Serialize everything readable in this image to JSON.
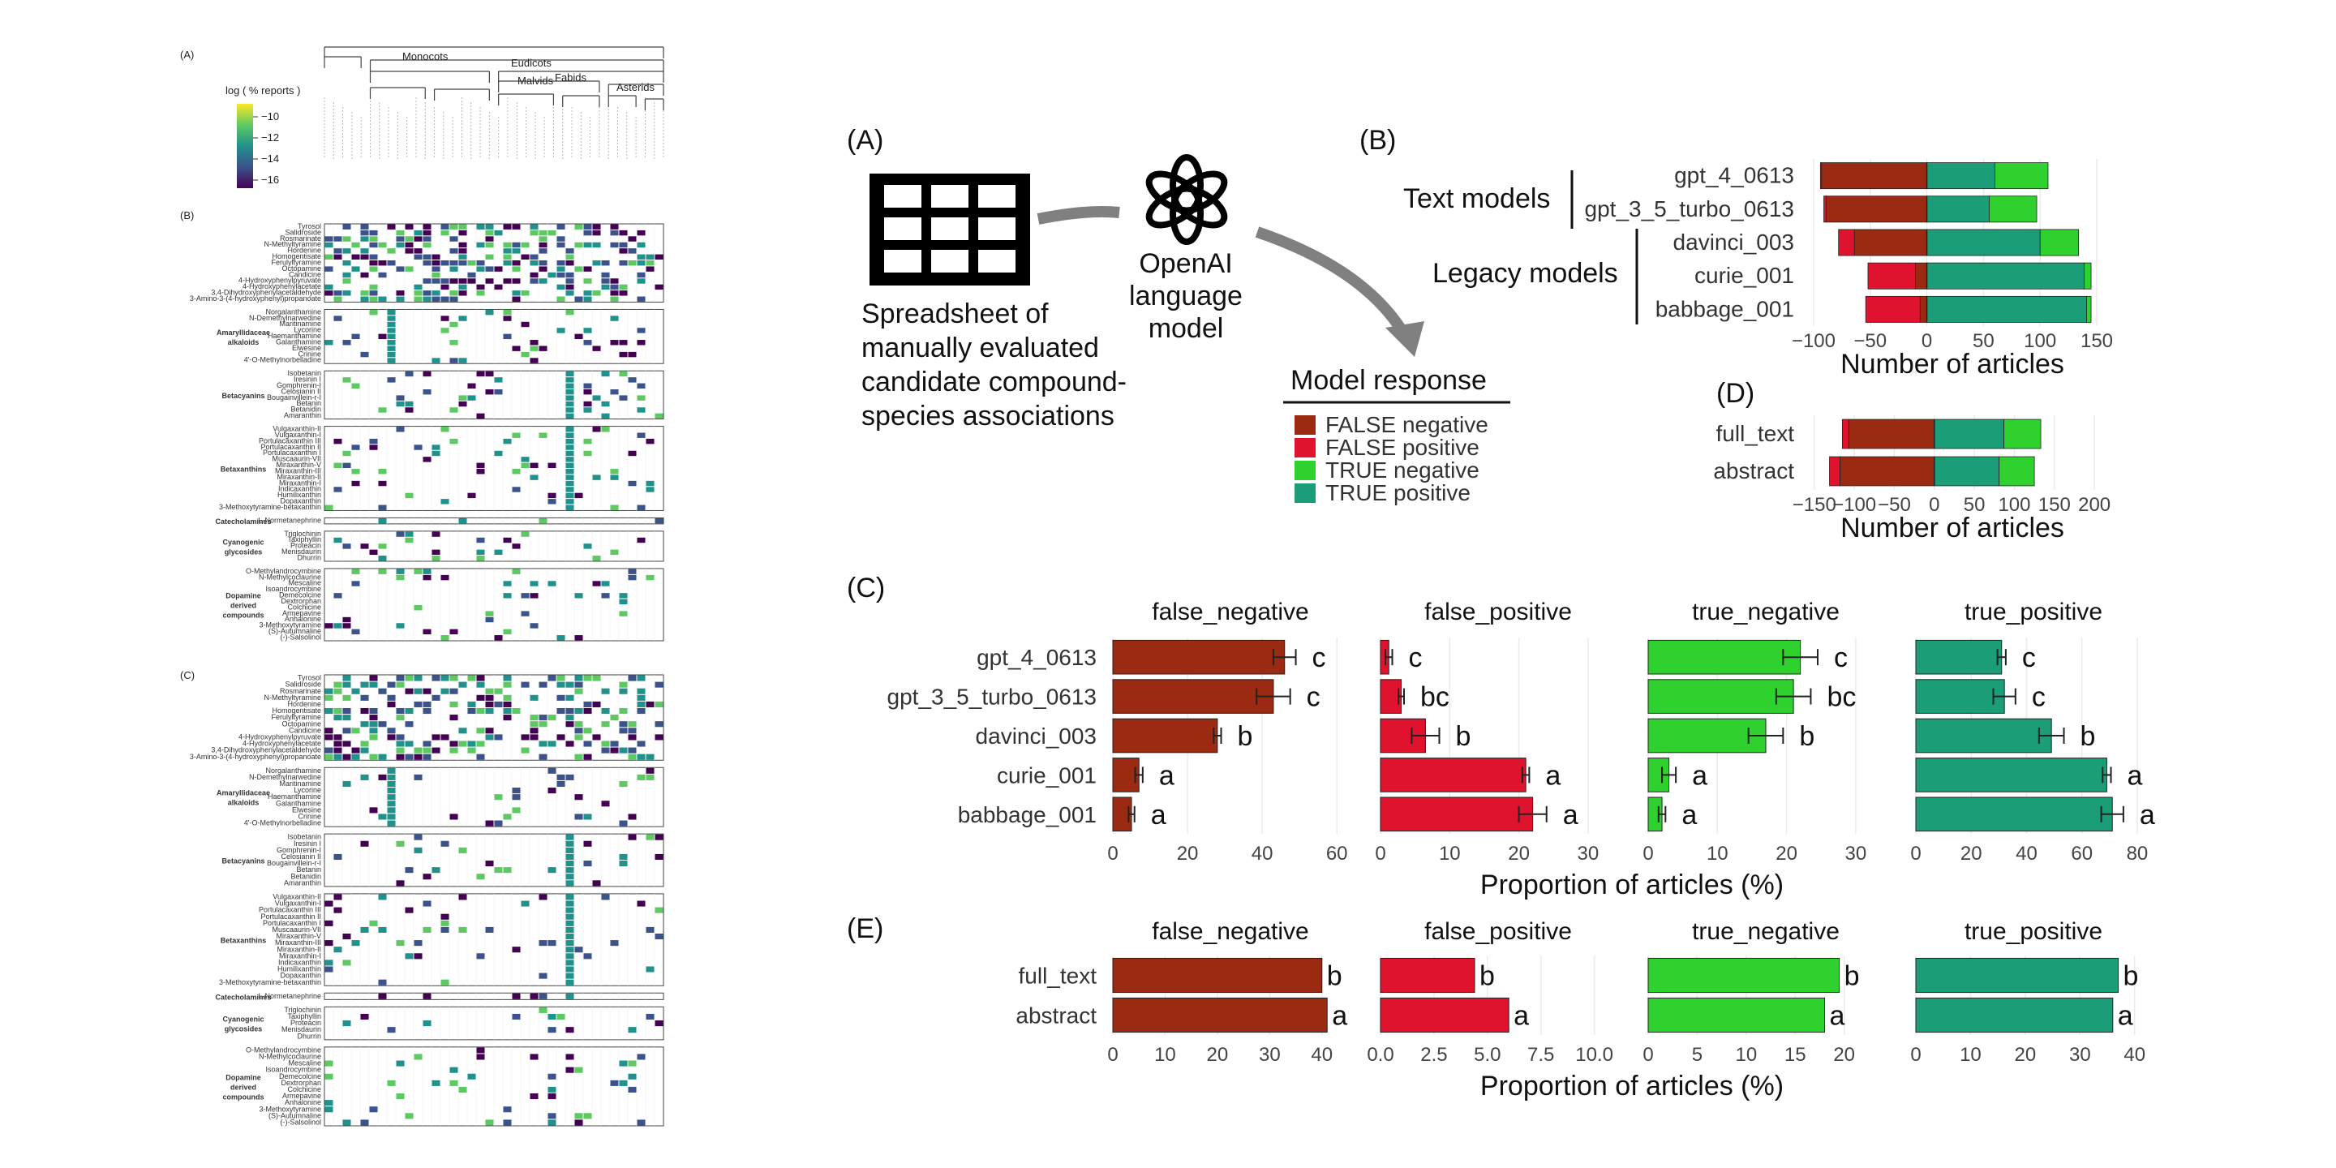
{
  "colors": {
    "false_negative": "#9b2a12",
    "false_positive": "#e0132f",
    "true_negative": "#2fd12f",
    "true_positive": "#1b9e77",
    "viridis": [
      "#440154",
      "#3b528b",
      "#21918c",
      "#5ec962",
      "#fde725"
    ]
  },
  "left_figure": {
    "label_a": "(A)",
    "label_b": "(B)",
    "label_c": "(C)",
    "legend_title": "log ( % reports )",
    "legend_ticks": [
      "−10",
      "−12",
      "−14",
      "−16"
    ],
    "clade_labels": [
      "Monocots",
      "Eudicots",
      "Malvids",
      "Fabids",
      "Asterids"
    ],
    "compound_groups": [
      {
        "name": "",
        "compounds": [
          "Tyrosol",
          "Salidroside",
          "Rosmarinate",
          "N-Methyltyramine",
          "Hordenine",
          "Homogentisate",
          "Ferulyltyramine",
          "Octopamine",
          "Candicine",
          "4-Hydroxyphenylpyruvate",
          "4-Hydroxyphenylacetate",
          "3,4-Dihydroxyphenylacetaldehyde",
          "3-Amino-3-(4-hydroxyphenyl)propanoate"
        ]
      },
      {
        "name": "Amaryllidaceae alkaloids",
        "compounds": [
          "Norgalanthamine",
          "N-Demethylnarwedine",
          "Maritinamine",
          "Lycorine",
          "Haemanthamine",
          "Galanthamine",
          "Elwesine",
          "Crinine",
          "4'-O-Methylnorbelladine"
        ]
      },
      {
        "name": "Betacyanins",
        "compounds": [
          "Isobetanin",
          "Iresinin I",
          "Gomphrenin-I",
          "Celosianin II",
          "Bougainvillein-r-I",
          "Betanin",
          "Betanidin",
          "Amaranthin"
        ]
      },
      {
        "name": "Betaxanthins",
        "compounds": [
          "Vulgaxanthin-II",
          "Vulgaxanthin-I",
          "Portulacaxanthin III",
          "Portulacaxanthin II",
          "Portulacaxanthin I",
          "Muscaaurin-VII",
          "Miraxanthin-V",
          "Miraxanthin-III",
          "Miraxanthin-II",
          "Miraxanthin-I",
          "Indicaxanthin",
          "Humilixanthin",
          "Dopaxanthin",
          "3-Methoxytyramine-betaxanthin"
        ]
      },
      {
        "name": "Catecholamines",
        "compounds": [
          "L-Normetanephrine"
        ]
      },
      {
        "name": "Cyanogenic glycosides",
        "compounds": [
          "Triglochinin",
          "Taxiphyllin",
          "Proteacin",
          "Menisdaurin",
          "Dhurrin"
        ]
      },
      {
        "name": "Dopamine derived compounds",
        "compounds": [
          "O-Methylandrocymbine",
          "N-Methylcoclaurine",
          "Mescaline",
          "Isoandrocymbine",
          "Demecolcine",
          "Dextrorphan",
          "Colchicine",
          "Armepavine",
          "Anhalonine",
          "3-Methoxytyramine",
          "(S)-Autumnaline",
          "(-)-Salsolinol"
        ]
      }
    ]
  },
  "panels": {
    "a_label": "(A)",
    "b_label": "(B)",
    "c_label": "(C)",
    "d_label": "(D)",
    "e_label": "(E)",
    "spreadsheet_caption": [
      "Spreadsheet of",
      "manually evaluated",
      "candidate compound-",
      "species associations"
    ],
    "model_caption": [
      "OpenAI",
      "language",
      "model"
    ],
    "model_response_title": "Model response",
    "legend_items": [
      {
        "label": "FALSE negative",
        "color": "#9b2a12"
      },
      {
        "label": "FALSE positive",
        "color": "#e0132f"
      },
      {
        "label": "TRUE negative",
        "color": "#2fd12f"
      },
      {
        "label": "TRUE positive",
        "color": "#1b9e77"
      }
    ],
    "text_models_label": "Text models",
    "legacy_models_label": "Legacy models"
  },
  "chart_data": [
    {
      "panel": "(B)",
      "type": "bar",
      "orientation": "horizontal-diverging-stacked",
      "categories": [
        "gpt_4_0613",
        "gpt_3_5_turbo_0613",
        "davinci_003",
        "curie_001",
        "babbage_001"
      ],
      "series": [
        {
          "name": "FALSE negative",
          "values": [
            -93,
            -89,
            -64,
            -10,
            -6
          ]
        },
        {
          "name": "FALSE positive",
          "values": [
            -1,
            -2,
            -14,
            -42,
            -48
          ]
        },
        {
          "name": "TRUE positive",
          "values": [
            60,
            55,
            100,
            139,
            141
          ]
        },
        {
          "name": "TRUE negative",
          "values": [
            47,
            42,
            34,
            6,
            4
          ]
        }
      ],
      "xlabel": "Number of articles",
      "xticks": [
        -100,
        -50,
        0,
        50,
        100,
        150
      ],
      "xlim": [
        -110,
        155
      ]
    },
    {
      "panel": "(D)",
      "type": "bar",
      "orientation": "horizontal-diverging-stacked",
      "categories": [
        "full_text",
        "abstract"
      ],
      "series": [
        {
          "name": "FALSE negative",
          "values": [
            -107,
            -118
          ]
        },
        {
          "name": "FALSE positive",
          "values": [
            -8,
            -13
          ]
        },
        {
          "name": "TRUE positive",
          "values": [
            87,
            81
          ]
        },
        {
          "name": "TRUE negative",
          "values": [
            46,
            44
          ]
        }
      ],
      "xlabel": "Number of articles",
      "xticks": [
        -150,
        -100,
        -50,
        0,
        50,
        100,
        150,
        200
      ],
      "xlim": [
        -165,
        210
      ]
    },
    {
      "panel": "(C)",
      "type": "bar",
      "orientation": "horizontal-faceted",
      "categories": [
        "gpt_4_0613",
        "gpt_3_5_turbo_0613",
        "davinci_003",
        "curie_001",
        "babbage_001"
      ],
      "xlabel": "Proportion of articles (%)",
      "facets": [
        {
          "name": "false_negative",
          "values": [
            46,
            43,
            28,
            7,
            5
          ],
          "errors": [
            3,
            4.5,
            1,
            1,
            0.8
          ],
          "letters": [
            "c",
            "c",
            "b",
            "a",
            "a"
          ],
          "xticks": [
            0,
            20,
            40,
            60
          ],
          "xlim": [
            0,
            63
          ]
        },
        {
          "name": "false_positive",
          "values": [
            1.2,
            3,
            6.5,
            21,
            22
          ],
          "errors": [
            0.5,
            0.4,
            2,
            0.5,
            2
          ],
          "letters": [
            "c",
            "bc",
            "b",
            "a",
            "a"
          ],
          "xticks": [
            0,
            10,
            20,
            30
          ],
          "xlim": [
            0,
            34
          ]
        },
        {
          "name": "true_negative",
          "values": [
            22,
            21,
            17,
            3,
            2
          ],
          "errors": [
            2.5,
            2.5,
            2.5,
            1,
            0.5
          ],
          "letters": [
            "c",
            "bc",
            "b",
            "a",
            "a"
          ],
          "xticks": [
            0,
            10,
            20,
            30
          ],
          "xlim": [
            0,
            34
          ]
        },
        {
          "name": "true_positive",
          "values": [
            31,
            32,
            49,
            69,
            71
          ],
          "errors": [
            1.5,
            4,
            4.5,
            1.5,
            4
          ],
          "letters": [
            "c",
            "c",
            "b",
            "a",
            "a"
          ],
          "xticks": [
            0,
            20,
            40,
            60,
            80
          ],
          "xlim": [
            0,
            85
          ]
        }
      ]
    },
    {
      "panel": "(E)",
      "type": "bar",
      "orientation": "horizontal-faceted",
      "categories": [
        "full_text",
        "abstract"
      ],
      "xlabel": "Proportion of articles (%)",
      "facets": [
        {
          "name": "false_negative",
          "values": [
            40,
            41
          ],
          "letters": [
            "b",
            "a"
          ],
          "xticks": [
            0,
            10,
            20,
            30,
            40
          ],
          "xlim": [
            0,
            45
          ]
        },
        {
          "name": "false_positive",
          "values": [
            4.4,
            6
          ],
          "letters": [
            "b",
            "a"
          ],
          "xticks": [
            0.0,
            2.5,
            5.0,
            7.5,
            10.0
          ],
          "xtick_labels": [
            "0.0",
            "2.5",
            "5.0",
            "7.5",
            "10.0"
          ],
          "xlim": [
            0,
            11
          ]
        },
        {
          "name": "true_negative",
          "values": [
            19.5,
            18
          ],
          "letters": [
            "b",
            "a"
          ],
          "xticks": [
            0,
            5,
            10,
            15,
            20
          ],
          "xlim": [
            0,
            24
          ]
        },
        {
          "name": "true_positive",
          "values": [
            37,
            36
          ],
          "letters": [
            "b",
            "a"
          ],
          "xticks": [
            0,
            10,
            20,
            30,
            40
          ],
          "xlim": [
            0,
            43
          ]
        }
      ]
    }
  ]
}
